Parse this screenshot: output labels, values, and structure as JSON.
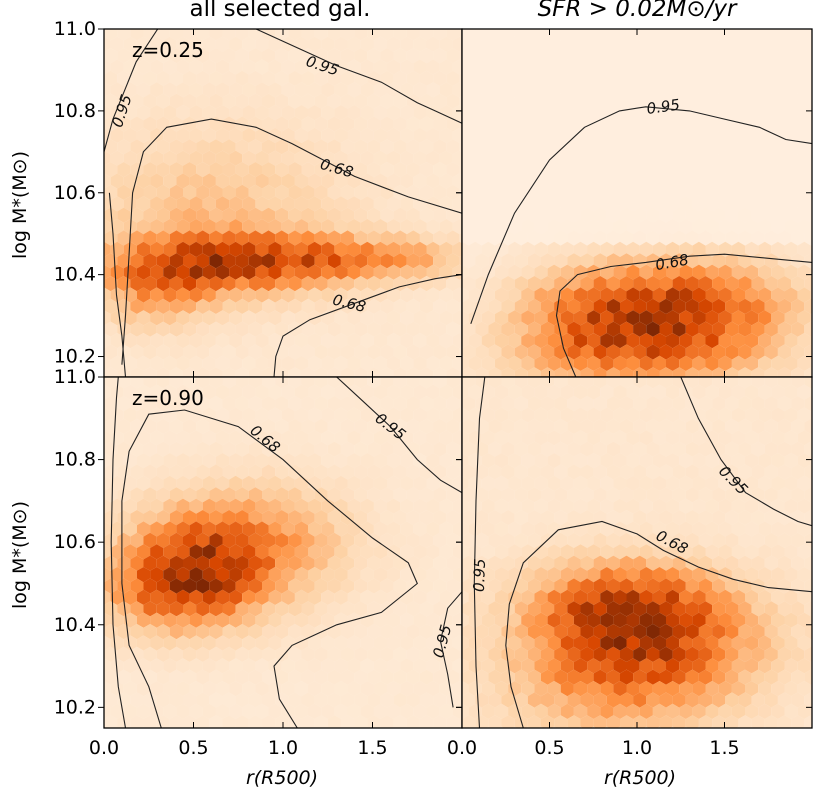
{
  "colors": {
    "cmap": [
      "#fff5eb",
      "#fdd0a2",
      "#fd8d3c",
      "#d94801",
      "#7f2704"
    ],
    "contour": "#222222",
    "axes": "#000000"
  },
  "chart_data": {
    "type": "heatmap",
    "subtype": "hexbin density with contours (2x2 panels)",
    "xlim": [
      0.0,
      2.0
    ],
    "ylim": [
      10.15,
      11.0
    ],
    "xticks": [
      0.0,
      0.5,
      1.0,
      1.5
    ],
    "xtick_labels": [
      "0.0",
      "0.5",
      "1.0",
      "1.5"
    ],
    "yticks": [
      10.2,
      10.4,
      10.6,
      10.8,
      11.0
    ],
    "ytick_labels": [
      "10.2",
      "10.4",
      "10.6",
      "10.8",
      "11.0"
    ],
    "col_titles": [
      "all selected gal.",
      "SFR > 0.02M⊙/yr"
    ],
    "xlabel": "r(R500)",
    "ylabel": "log M*(M⊙)",
    "row_labels": [
      "z=0.25",
      "z=0.90"
    ],
    "contour_levels": [
      "0.68",
      "0.95"
    ],
    "panels": [
      {
        "id": "top-left",
        "row_label": "z=0.25",
        "peaks": [
          {
            "x": 0.7,
            "y": 10.43,
            "sx": 0.45,
            "sy": 0.05,
            "amp": 1.0
          },
          {
            "x": 1.5,
            "y": 10.44,
            "sx": 0.35,
            "sy": 0.035,
            "amp": 0.6
          },
          {
            "x": 0.3,
            "y": 10.36,
            "sx": 0.2,
            "sy": 0.06,
            "amp": 0.5
          },
          {
            "x": 0.6,
            "y": 10.55,
            "sx": 0.5,
            "sy": 0.14,
            "amp": 0.35
          }
        ],
        "base": 0.08,
        "contours": [
          {
            "level": "0.95",
            "label_xy": [
              1.22,
              10.91
            ],
            "label_rot": 18,
            "points": [
              [
                0.0,
                10.7
              ],
              [
                0.05,
                10.78
              ],
              [
                0.18,
                10.92
              ],
              [
                0.3,
                11.0
              ]
            ]
          },
          {
            "level": "0.95",
            "label_xy": [
              0.1,
              10.8
            ],
            "label_rot": -72,
            "points": []
          },
          {
            "level": "0.95",
            "label_xy": [
              1.22,
              10.91
            ],
            "label_rot": 18,
            "points": [
              [
                0.85,
                11.0
              ],
              [
                1.05,
                10.96
              ],
              [
                1.3,
                10.91
              ],
              [
                1.55,
                10.87
              ],
              [
                1.75,
                10.82
              ],
              [
                1.85,
                10.8
              ],
              [
                1.95,
                10.78
              ],
              [
                2.0,
                10.77
              ]
            ]
          },
          {
            "level": "0.68",
            "label_xy": [
              1.3,
              10.66
            ],
            "label_rot": 16,
            "points": [
              [
                0.1,
                10.18
              ],
              [
                0.12,
                10.3
              ],
              [
                0.14,
                10.45
              ],
              [
                0.16,
                10.6
              ],
              [
                0.22,
                10.7
              ],
              [
                0.35,
                10.76
              ],
              [
                0.6,
                10.78
              ],
              [
                0.85,
                10.76
              ],
              [
                1.05,
                10.72
              ],
              [
                1.4,
                10.64
              ],
              [
                1.7,
                10.59
              ],
              [
                2.0,
                10.55
              ]
            ]
          },
          {
            "level": "0.68",
            "label_xy": [
              1.37,
              10.33
            ],
            "label_rot": 14,
            "points": [
              [
                0.95,
                10.15
              ],
              [
                0.96,
                10.2
              ],
              [
                1.0,
                10.25
              ],
              [
                1.15,
                10.29
              ],
              [
                1.4,
                10.33
              ],
              [
                1.65,
                10.37
              ],
              [
                1.85,
                10.39
              ],
              [
                2.0,
                10.4
              ]
            ]
          },
          {
            "level": "0.95",
            "label_xy": [
              0.1,
              10.8
            ],
            "label_rot": 0,
            "points": [
              [
                0.12,
                10.15
              ],
              [
                0.1,
                10.25
              ],
              [
                0.07,
                10.35
              ],
              [
                0.05,
                10.5
              ],
              [
                0.03,
                10.6
              ]
            ]
          }
        ]
      },
      {
        "id": "top-right",
        "row_label": "",
        "peaks": [
          {
            "x": 1.3,
            "y": 10.32,
            "sx": 0.4,
            "sy": 0.08,
            "amp": 1.0
          },
          {
            "x": 0.7,
            "y": 10.3,
            "sx": 0.3,
            "sy": 0.08,
            "amp": 0.55
          },
          {
            "x": 1.0,
            "y": 10.2,
            "sx": 0.5,
            "sy": 0.06,
            "amp": 0.5
          }
        ],
        "cutoff_y": 10.47,
        "base": 0.04,
        "contours": [
          {
            "level": "0.95",
            "label_xy": [
              1.15,
              10.81
            ],
            "label_rot": -8,
            "points": [
              [
                0.05,
                10.28
              ],
              [
                0.15,
                10.4
              ],
              [
                0.3,
                10.55
              ],
              [
                0.5,
                10.68
              ],
              [
                0.7,
                10.76
              ],
              [
                0.9,
                10.8
              ],
              [
                1.05,
                10.81
              ],
              [
                1.3,
                10.8
              ],
              [
                1.5,
                10.78
              ],
              [
                1.7,
                10.76
              ],
              [
                1.85,
                10.73
              ],
              [
                2.0,
                10.72
              ]
            ]
          },
          {
            "level": "0.68",
            "label_xy": [
              1.2,
              10.43
            ],
            "label_rot": -10,
            "points": [
              [
                0.65,
                10.15
              ],
              [
                0.58,
                10.22
              ],
              [
                0.54,
                10.3
              ],
              [
                0.56,
                10.36
              ],
              [
                0.66,
                10.4
              ],
              [
                0.85,
                10.42
              ],
              [
                1.05,
                10.43
              ],
              [
                1.3,
                10.445
              ],
              [
                1.5,
                10.45
              ],
              [
                1.75,
                10.44
              ],
              [
                2.0,
                10.43
              ]
            ]
          }
        ]
      },
      {
        "id": "bottom-left",
        "row_label": "z=0.90",
        "peaks": [
          {
            "x": 0.55,
            "y": 10.55,
            "sx": 0.3,
            "sy": 0.09,
            "amp": 1.0
          },
          {
            "x": 0.35,
            "y": 10.48,
            "sx": 0.25,
            "sy": 0.07,
            "amp": 0.7
          },
          {
            "x": 0.9,
            "y": 10.6,
            "sx": 0.35,
            "sy": 0.1,
            "amp": 0.5
          }
        ],
        "base": 0.08,
        "contours": [
          {
            "level": "0.95",
            "label_xy": [
              1.6,
              10.88
            ],
            "label_rot": 38,
            "points": [
              [
                1.3,
                11.0
              ],
              [
                1.45,
                10.94
              ],
              [
                1.6,
                10.88
              ],
              [
                1.75,
                10.8
              ],
              [
                1.88,
                10.75
              ],
              [
                2.0,
                10.72
              ]
            ]
          },
          {
            "level": "0.95",
            "label_xy": [
              1.89,
              10.36
            ],
            "label_rot": -75,
            "points": [
              [
                0.12,
                10.15
              ],
              [
                0.08,
                10.25
              ],
              [
                0.05,
                10.4
              ],
              [
                0.04,
                10.6
              ],
              [
                0.05,
                10.8
              ],
              [
                0.07,
                10.95
              ],
              [
                0.08,
                11.0
              ]
            ]
          },
          {
            "level": "0.95",
            "label_xy": [
              1.89,
              10.36
            ],
            "label_rot": -75,
            "points": [
              [
                1.95,
                10.2
              ],
              [
                1.92,
                10.28
              ],
              [
                1.88,
                10.36
              ],
              [
                1.92,
                10.44
              ],
              [
                2.0,
                10.48
              ]
            ]
          },
          {
            "level": "0.68",
            "label_xy": [
              0.9,
              10.85
            ],
            "label_rot": 40,
            "points": [
              [
                0.32,
                10.15
              ],
              [
                0.25,
                10.25
              ],
              [
                0.14,
                10.35
              ],
              [
                0.1,
                10.5
              ],
              [
                0.1,
                10.7
              ],
              [
                0.14,
                10.82
              ],
              [
                0.25,
                10.91
              ],
              [
                0.45,
                10.92
              ],
              [
                0.75,
                10.88
              ],
              [
                1.0,
                10.8
              ],
              [
                1.25,
                10.7
              ],
              [
                1.5,
                10.61
              ],
              [
                1.7,
                10.55
              ],
              [
                1.75,
                10.5
              ],
              [
                1.55,
                10.43
              ],
              [
                1.3,
                10.4
              ],
              [
                1.05,
                10.35
              ],
              [
                0.95,
                10.3
              ],
              [
                0.98,
                10.22
              ],
              [
                1.08,
                10.15
              ]
            ]
          }
        ]
      },
      {
        "id": "bottom-right",
        "row_label": "",
        "peaks": [
          {
            "x": 0.9,
            "y": 10.45,
            "sx": 0.35,
            "sy": 0.07,
            "amp": 1.0
          },
          {
            "x": 1.2,
            "y": 10.35,
            "sx": 0.4,
            "sy": 0.1,
            "amp": 0.75
          },
          {
            "x": 0.8,
            "y": 10.28,
            "sx": 0.4,
            "sy": 0.1,
            "amp": 0.6
          }
        ],
        "base": 0.1,
        "contours": [
          {
            "level": "0.95",
            "label_xy": [
              1.55,
              10.75
            ],
            "label_rot": 45,
            "points": [
              [
                1.25,
                11.0
              ],
              [
                1.35,
                10.9
              ],
              [
                1.48,
                10.8
              ],
              [
                1.62,
                10.72
              ],
              [
                1.78,
                10.68
              ],
              [
                1.92,
                10.65
              ],
              [
                2.0,
                10.64
              ]
            ]
          },
          {
            "level": "0.95",
            "label_xy": [
              0.1,
              10.52
            ],
            "label_rot": -88,
            "points": [
              [
                0.1,
                10.15
              ],
              [
                0.08,
                10.3
              ],
              [
                0.07,
                10.5
              ],
              [
                0.08,
                10.7
              ],
              [
                0.1,
                10.9
              ],
              [
                0.13,
                11.0
              ]
            ]
          },
          {
            "level": "0.68",
            "label_xy": [
              1.2,
              10.6
            ],
            "label_rot": 28,
            "points": [
              [
                0.35,
                10.15
              ],
              [
                0.28,
                10.25
              ],
              [
                0.25,
                10.35
              ],
              [
                0.27,
                10.45
              ],
              [
                0.35,
                10.55
              ],
              [
                0.55,
                10.63
              ],
              [
                0.8,
                10.65
              ],
              [
                1.0,
                10.62
              ],
              [
                1.15,
                10.58
              ],
              [
                1.35,
                10.54
              ],
              [
                1.55,
                10.51
              ],
              [
                1.75,
                10.49
              ],
              [
                2.0,
                10.48
              ]
            ]
          }
        ]
      }
    ]
  }
}
